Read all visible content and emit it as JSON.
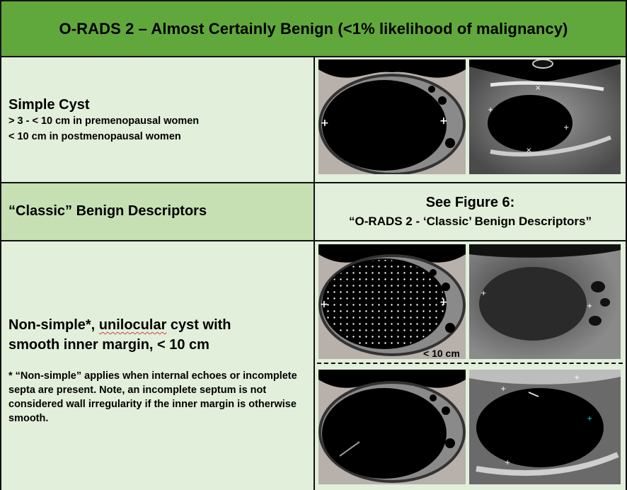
{
  "header": {
    "title": "O-RADS 2 – Almost Certainly Benign (<1% likelihood of malignancy)"
  },
  "rows": {
    "simple_cyst": {
      "title": "Simple Cyst",
      "line1": "> 3 - < 10 cm in premenopausal women",
      "line2": "< 10 cm in postmenopausal women"
    },
    "classic": {
      "title": "“Classic” Benign Descriptors",
      "see_line1": "See Figure 6:",
      "see_line2": "“O-RADS 2 - ‘Classic’ Benign Descriptors”"
    },
    "nonsimple": {
      "title_part1": "Non-simple*, ",
      "title_underlined": "unilocular",
      "title_part2": " cyst with",
      "title_line2": "smooth inner margin, < 10 cm",
      "footnote": "* “Non-simple” applies when internal echoes or incomplete septa are present. Note, an incomplete septum is not considered wall irregularity if the inner margin is otherwise smooth.",
      "size_label": "< 10 cm"
    }
  },
  "colors": {
    "header": "#61a83c",
    "light_cell": "#e2efda",
    "mid_cell": "#c6e0b4"
  }
}
